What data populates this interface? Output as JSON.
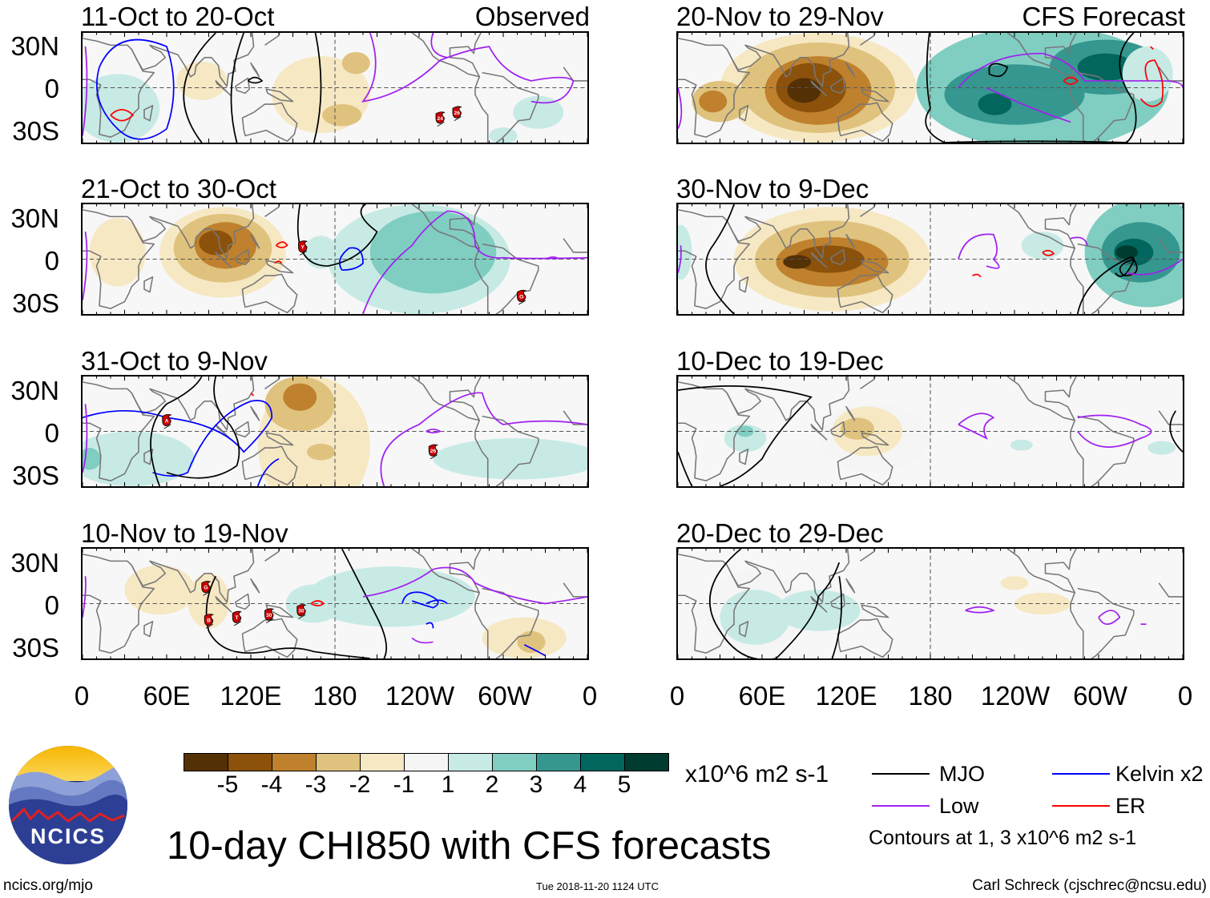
{
  "figure_title": "10-day CHI850 with CFS forecasts",
  "column_labels": {
    "observed": "Observed",
    "forecast": "CFS Forecast"
  },
  "panels": [
    {
      "title": "11-Oct to 20-Oct",
      "group": "observed",
      "storms": [
        "24",
        "26"
      ]
    },
    {
      "title": "21-Oct to 30-Oct",
      "group": "observed",
      "storms": [
        "Y",
        "O"
      ]
    },
    {
      "title": "31-Oct to 9-Nov",
      "group": "observed",
      "storms": [
        "A",
        "26"
      ]
    },
    {
      "title": "10-Nov to 19-Nov",
      "group": "observed",
      "storms": [
        "G",
        "B",
        "T",
        "30",
        "30"
      ]
    },
    {
      "title": "20-Nov to 29-Nov",
      "group": "forecast",
      "storms": []
    },
    {
      "title": "30-Nov to 9-Dec",
      "group": "forecast",
      "storms": []
    },
    {
      "title": "10-Dec to 19-Dec",
      "group": "forecast",
      "storms": []
    },
    {
      "title": "20-Dec to 29-Dec",
      "group": "forecast",
      "storms": []
    }
  ],
  "lat_labels": [
    "30N",
    "0",
    "30S"
  ],
  "lon_labels": [
    "0",
    "60E",
    "120E",
    "180",
    "120W",
    "60W",
    "0"
  ],
  "colorbar": {
    "labels": [
      "-5",
      "-4",
      "-3",
      "-2",
      "-1",
      "1",
      "2",
      "3",
      "4",
      "5"
    ],
    "colors": [
      "#543005",
      "#8c510a",
      "#bf812d",
      "#dfc27d",
      "#f6e8c3",
      "#f5f5f5",
      "#c7eae5",
      "#80cdc1",
      "#35978f",
      "#01665e",
      "#003c30"
    ],
    "units": "x10^6 m2 s-1"
  },
  "legend": {
    "items": [
      {
        "label": "MJO",
        "color": "#000000"
      },
      {
        "label": "Low",
        "color": "#a020f0"
      },
      {
        "label": "Kelvin x2",
        "color": "#0000ff"
      },
      {
        "label": "ER",
        "color": "#ff0000"
      }
    ],
    "note": "Contours at 1, 3 x10^6 m2 s-1"
  },
  "logo": {
    "text": "NCICS"
  },
  "footer": {
    "url": "ncics.org/mjo",
    "timestamp": "Tue 2018-11-20 1124 UTC",
    "credit": "Carl Schreck (cjschrec@ncsu.edu)"
  }
}
